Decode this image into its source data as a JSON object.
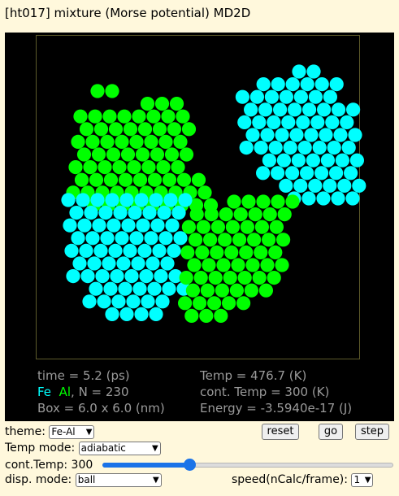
{
  "title": "[ht017] mixture (Morse potential) MD2D",
  "info": {
    "time": "time = 5.2 (ps)",
    "temp": "Temp = 476.7 (K)",
    "legend_fe": "Fe",
    "legend_al": "Al",
    "count": ",   N = 230",
    "cont_temp": "cont. Temp = 300 (K)",
    "box": "Box = 6.0 x 6.0 (nm)",
    "energy": "Energy = -3.5940e-17 (J)"
  },
  "colors": {
    "fe": "#00ffff",
    "al": "#00ff00",
    "background": "#000000"
  },
  "controls": {
    "theme_label": "theme:",
    "theme_value": "Fe-Al",
    "reset": "reset",
    "go": "go",
    "step": "step",
    "temp_mode_label": "Temp mode:",
    "temp_mode_value": "adiabatic",
    "cont_temp_label": "cont.Temp: 300",
    "cont_temp_fraction": 0.3,
    "disp_mode_label": "disp. mode:",
    "disp_mode_value": "ball",
    "speed_label": "speed(nCalc/frame):",
    "speed_value": "1"
  }
}
